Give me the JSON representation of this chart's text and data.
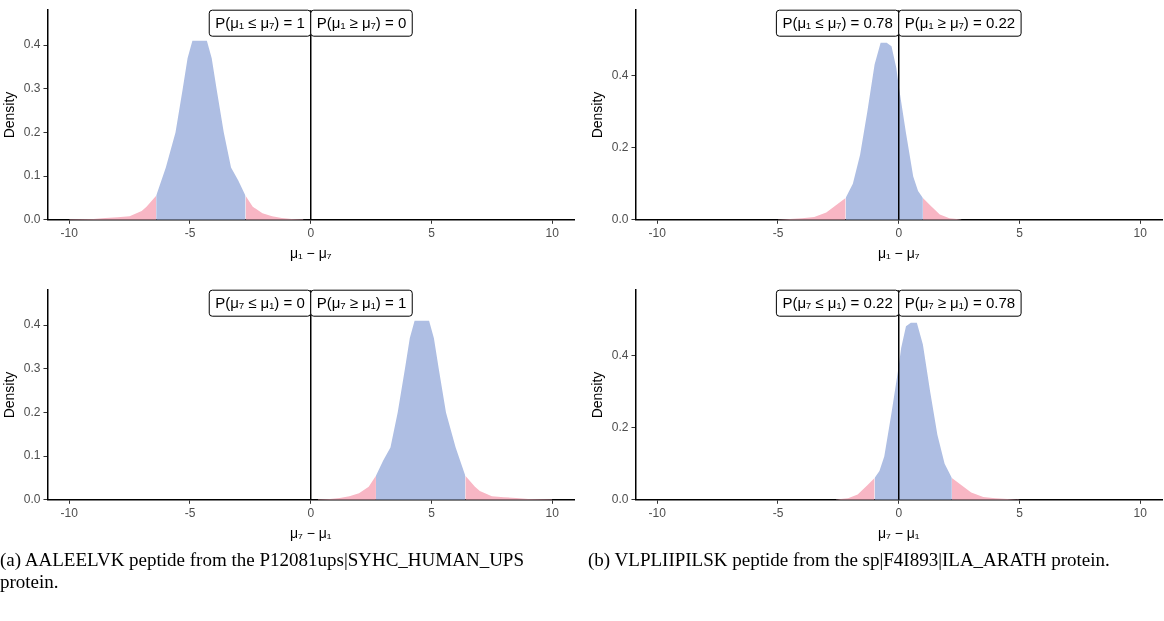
{
  "chart_data": [
    {
      "type": "area",
      "xlabel": "μ₁ − μ₇",
      "ylabel": "Density",
      "xlim": [
        -10.9,
        10.9
      ],
      "ylim": [
        0,
        0.48
      ],
      "xticks": [
        -10,
        -5,
        0,
        5,
        10
      ],
      "yticks": [
        {
          "value": 0,
          "label": "0.0"
        },
        {
          "value": 0.1,
          "label": "0.1"
        },
        {
          "value": 0.2,
          "label": "0.2"
        },
        {
          "value": 0.3,
          "label": "0.3"
        },
        {
          "value": 0.4,
          "label": "0.4"
        }
      ],
      "grid": false,
      "legend": false,
      "series": [
        {
          "color": "#f8b6c4",
          "x": [
            -10,
            -9,
            -8.5,
            -8,
            -7.5,
            -7,
            -6.8,
            -6.4
          ],
          "values": [
            0.001,
            0.002,
            0.004,
            0.006,
            0.008,
            0.02,
            0.03,
            0.055
          ]
        },
        {
          "color": "#aebee3",
          "x": [
            -6.4,
            -6,
            -5.6,
            -5.3,
            -5.1,
            -4.9,
            -4.6,
            -4.3,
            -4.1,
            -3.9,
            -3.6,
            -3.3,
            -3,
            -2.7
          ],
          "values": [
            0.055,
            0.12,
            0.2,
            0.3,
            0.37,
            0.41,
            0.41,
            0.41,
            0.37,
            0.3,
            0.2,
            0.12,
            0.09,
            0.055
          ]
        },
        {
          "color": "#f8b6c4",
          "x": [
            -2.7,
            -2.4,
            -2,
            -1.6,
            -1.2,
            -0.8,
            -0.3
          ],
          "values": [
            0.055,
            0.03,
            0.015,
            0.008,
            0.004,
            0.002,
            0.001
          ]
        }
      ],
      "ref_lines": [
        {
          "axis": "x",
          "value": 0
        }
      ],
      "annotations": [
        "P(μ₁ ≤ μ₇) = 1",
        "P(μ₁ ≥ μ₇) = 0"
      ]
    },
    {
      "type": "area",
      "xlabel": "μ₁ − μ₇",
      "ylabel": "Density",
      "xlim": [
        -10.9,
        10.9
      ],
      "ylim": [
        0,
        0.58
      ],
      "xticks": [
        -10,
        -5,
        0,
        5,
        10
      ],
      "yticks": [
        {
          "value": 0,
          "label": "0.0"
        },
        {
          "value": 0.2,
          "label": "0.2"
        },
        {
          "value": 0.4,
          "label": "0.4"
        }
      ],
      "grid": false,
      "legend": false,
      "series": [
        {
          "color": "#f8b6c4",
          "x": [
            -5,
            -4.5,
            -4,
            -3.5,
            -3,
            -2.6,
            -2.2
          ],
          "values": [
            0.001,
            0.002,
            0.004,
            0.008,
            0.02,
            0.04,
            0.06
          ]
        },
        {
          "color": "#aebee3",
          "x": [
            -2.2,
            -1.9,
            -1.6,
            -1.3,
            -1.0,
            -0.75,
            -0.5,
            -0.3,
            -0.1,
            0,
            0.3,
            0.6,
            0.8,
            1.0
          ],
          "values": [
            0.06,
            0.1,
            0.18,
            0.3,
            0.43,
            0.49,
            0.49,
            0.48,
            0.42,
            0.37,
            0.24,
            0.12,
            0.08,
            0.06
          ]
        },
        {
          "color": "#f8b6c4",
          "x": [
            1.0,
            1.3,
            1.7,
            2.1,
            2.6
          ],
          "values": [
            0.06,
            0.04,
            0.015,
            0.004,
            0.001
          ]
        }
      ],
      "ref_lines": [
        {
          "axis": "x",
          "value": 0
        }
      ],
      "annotations": [
        "P(μ₁ ≤ μ₇) = 0.78",
        "P(μ₁ ≥ μ₇) = 0.22"
      ]
    },
    {
      "type": "area",
      "xlabel": "μ₇ − μ₁",
      "ylabel": "Density",
      "xlim": [
        -10.9,
        10.9
      ],
      "ylim": [
        0,
        0.48
      ],
      "xticks": [
        -10,
        -5,
        0,
        5,
        10
      ],
      "yticks": [
        {
          "value": 0,
          "label": "0.0"
        },
        {
          "value": 0.1,
          "label": "0.1"
        },
        {
          "value": 0.2,
          "label": "0.2"
        },
        {
          "value": 0.3,
          "label": "0.3"
        },
        {
          "value": 0.4,
          "label": "0.4"
        }
      ],
      "grid": false,
      "legend": false,
      "series": [
        {
          "color": "#f8b6c4",
          "x": [
            0.3,
            0.8,
            1.2,
            1.6,
            2,
            2.4,
            2.7
          ],
          "values": [
            0.001,
            0.002,
            0.004,
            0.008,
            0.015,
            0.03,
            0.055
          ]
        },
        {
          "color": "#aebee3",
          "x": [
            2.7,
            3,
            3.3,
            3.6,
            3.9,
            4.1,
            4.3,
            4.6,
            4.9,
            5.1,
            5.3,
            5.6,
            6,
            6.4
          ],
          "values": [
            0.055,
            0.09,
            0.12,
            0.2,
            0.3,
            0.37,
            0.41,
            0.41,
            0.41,
            0.37,
            0.3,
            0.2,
            0.12,
            0.055
          ]
        },
        {
          "color": "#f8b6c4",
          "x": [
            6.4,
            6.8,
            7,
            7.5,
            8,
            8.5,
            9,
            10
          ],
          "values": [
            0.055,
            0.03,
            0.02,
            0.008,
            0.006,
            0.004,
            0.002,
            0.001
          ]
        }
      ],
      "ref_lines": [
        {
          "axis": "x",
          "value": 0
        }
      ],
      "annotations": [
        "P(μ₇ ≤ μ₁) = 0",
        "P(μ₇ ≥ μ₁) = 1",
        "(a) AALEELVK peptide from the P12081ups|SYHC_HUMAN_UPS protein."
      ]
    },
    {
      "type": "area",
      "xlabel": "μ₇ − μ₁",
      "ylabel": "Density",
      "xlim": [
        -10.9,
        10.9
      ],
      "ylim": [
        0,
        0.58
      ],
      "xticks": [
        -10,
        -5,
        0,
        5,
        10
      ],
      "yticks": [
        {
          "value": 0,
          "label": "0.0"
        },
        {
          "value": 0.2,
          "label": "0.2"
        },
        {
          "value": 0.4,
          "label": "0.4"
        }
      ],
      "grid": false,
      "legend": false,
      "series": [
        {
          "color": "#f8b6c4",
          "x": [
            -2.6,
            -2.1,
            -1.7,
            -1.3,
            -1.0
          ],
          "values": [
            0.001,
            0.004,
            0.015,
            0.04,
            0.06
          ]
        },
        {
          "color": "#aebee3",
          "x": [
            -1.0,
            -0.8,
            -0.6,
            -0.3,
            0,
            0.1,
            0.3,
            0.5,
            0.75,
            1.0,
            1.3,
            1.6,
            1.9,
            2.2
          ],
          "values": [
            0.06,
            0.08,
            0.12,
            0.24,
            0.37,
            0.42,
            0.48,
            0.49,
            0.49,
            0.43,
            0.3,
            0.18,
            0.1,
            0.06
          ]
        },
        {
          "color": "#f8b6c4",
          "x": [
            2.2,
            2.6,
            3,
            3.5,
            4,
            4.5,
            5
          ],
          "values": [
            0.06,
            0.04,
            0.02,
            0.008,
            0.004,
            0.002,
            0.001
          ]
        }
      ],
      "ref_lines": [
        {
          "axis": "x",
          "value": 0
        }
      ],
      "annotations": [
        "P(μ₇ ≤ μ₁) = 0.22",
        "P(μ₇ ≥ μ₁) = 0.78",
        "(b) VLPLIIPILSK peptide from the sp|F4I893|ILA_ARATH protein."
      ]
    }
  ]
}
